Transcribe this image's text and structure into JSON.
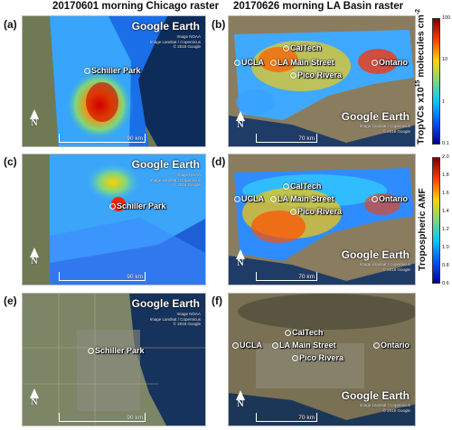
{
  "columns": {
    "left_title": "20170601 morning Chicago raster",
    "right_title": "20170626 morning LA Basin raster"
  },
  "panels": [
    {
      "tag": "(a)",
      "logo": "Google Earth",
      "credit": "Image NOAA\nImage Landsat / Copernicus\n© 2018 Google",
      "scale": "90 km",
      "north": "N",
      "sites": [
        {
          "label": "Schiller Park"
        }
      ]
    },
    {
      "tag": "(b)",
      "logo": "Google Earth",
      "credit": "Image Landsat / Copernicus\n© 2018 Google",
      "scale": "70 km",
      "north": "N",
      "sites": [
        {
          "label": "CalTech"
        },
        {
          "label": "UCLA"
        },
        {
          "label": "LA Main Street"
        },
        {
          "label": "Pico Rivera"
        },
        {
          "label": "Ontario"
        }
      ]
    },
    {
      "tag": "(c)",
      "logo": "Google Earth",
      "credit": "Image NOAA\nImage Landsat / Copernicus\n© 2018 Google",
      "scale": "90 km",
      "north": "N",
      "sites": [
        {
          "label": "Schiller Park"
        }
      ]
    },
    {
      "tag": "(d)",
      "logo": "Google Earth",
      "credit": "Image Landsat / Copernicus\n© 2018 Google",
      "scale": "70 km",
      "north": "N",
      "sites": [
        {
          "label": "CalTech"
        },
        {
          "label": "UCLA"
        },
        {
          "label": "LA Main Street"
        },
        {
          "label": "Pico Rivera"
        },
        {
          "label": "Ontario"
        }
      ]
    },
    {
      "tag": "(e)",
      "logo": "Google Earth",
      "credit": "Image NOAA\nImage Landsat / Copernicus\n© 2018 Google",
      "scale": "90 km",
      "north": "N",
      "sites": [
        {
          "label": "Schiller Park"
        }
      ]
    },
    {
      "tag": "(f)",
      "logo": "Google Earth",
      "credit": "Image Landsat / Copernicus\n© 2018 Google",
      "scale": "70 km",
      "north": "N",
      "sites": [
        {
          "label": "CalTech"
        },
        {
          "label": "UCLA"
        },
        {
          "label": "LA Main Street"
        },
        {
          "label": "Pico Rivera"
        },
        {
          "label": "Ontario"
        }
      ]
    }
  ],
  "colorbars": [
    {
      "label_html_base": "TropVCs x10",
      "label_sup": "15",
      "label_rest": " molecules cm",
      "label_sup2": "-2",
      "scale": "log",
      "range": [
        0.1,
        100
      ],
      "ticks": [
        "100",
        "10",
        "1",
        "0.1"
      ],
      "colors": [
        "#7a0000",
        "#ff3c00",
        "#ffd400",
        "#7ed77e",
        "#00c8ff",
        "#0050ff",
        "#00008f"
      ]
    },
    {
      "label": "Tropospheric AMF",
      "scale": "linear",
      "range": [
        0.6,
        2.0
      ],
      "ticks": [
        "2.0",
        "1.8",
        "1.6",
        "1.4",
        "1.2",
        "1.0",
        "0.8",
        "0.6"
      ],
      "colors": [
        "#7a0000",
        "#ff3c00",
        "#ffd400",
        "#7ed77e",
        "#00c8ff",
        "#0050ff",
        "#00008f"
      ]
    }
  ]
}
